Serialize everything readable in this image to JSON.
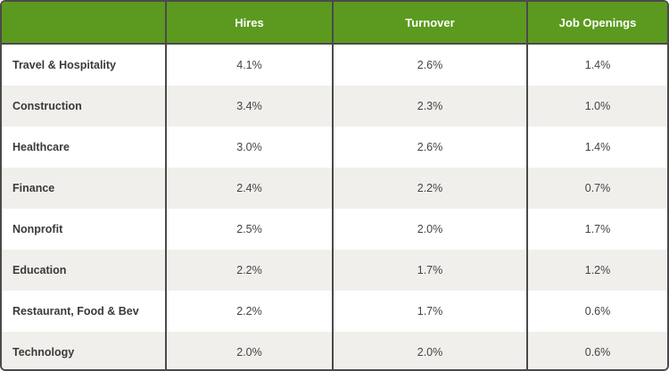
{
  "table": {
    "header": [
      "Hires",
      "Turnover",
      "Job Openings"
    ],
    "rows": [
      [
        "Travel & Hospitality",
        "4.1%",
        "2.6%",
        "1.4%"
      ],
      [
        "Construction",
        "3.4%",
        "2.3%",
        "1.0%"
      ],
      [
        "Healthcare",
        "3.0%",
        "2.6%",
        "1.4%"
      ],
      [
        "Finance",
        "2.4%",
        "2.2%",
        "0.7%"
      ],
      [
        "Nonprofit",
        "2.5%",
        "2.0%",
        "1.7%"
      ],
      [
        "Education",
        "2.2%",
        "1.7%",
        "1.2%"
      ],
      [
        "Restaurant, Food & Bev",
        "2.2%",
        "1.7%",
        "0.6%"
      ],
      [
        "Technology",
        "2.0%",
        "2.0%",
        "0.6%"
      ]
    ]
  }
}
